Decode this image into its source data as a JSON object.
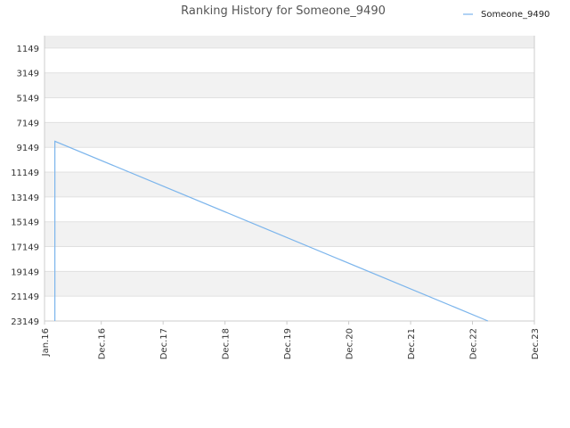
{
  "chart_data": {
    "type": "line",
    "title": "Ranking History for Someone_9490",
    "xlabel": "",
    "ylabel": "",
    "x_ticks": [
      "Jan.16",
      "Dec.16",
      "Dec.17",
      "Dec.18",
      "Dec.19",
      "Dec.20",
      "Dec.21",
      "Dec.22",
      "Dec.23"
    ],
    "y_ticks": [
      1149,
      3149,
      5149,
      7149,
      9149,
      11149,
      13149,
      15149,
      17149,
      19149,
      21149,
      23149
    ],
    "ylim": [
      23149,
      149
    ],
    "y_reversed": true,
    "grid": "alternating horizontal bands",
    "legend_position": "top-right",
    "series": [
      {
        "name": "Someone_9490",
        "color": "#7cb5ec",
        "points": [
          {
            "x": "2016-03",
            "y": 23149
          },
          {
            "x": "2016-03",
            "y": 8660
          },
          {
            "x": "2023-03",
            "y": 23149
          }
        ]
      }
    ]
  },
  "colors": {
    "band_shade": "#f2f2f2",
    "top_band": "#eeeeee",
    "grid_line": "#e0e0e0",
    "axis_line": "#cccccc"
  }
}
